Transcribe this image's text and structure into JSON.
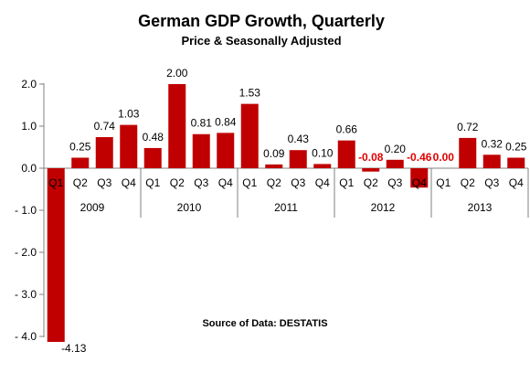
{
  "chart_data": {
    "type": "bar",
    "title": "German GDP Growth, Quarterly",
    "subtitle": "Price & Seasonally Adjusted",
    "source": "Source of Data: DESTATIS",
    "ylim": [
      -4.0,
      2.0
    ],
    "yticks": [
      "2.0",
      "1.0",
      "0.0",
      "- 1.0",
      "- 2.0",
      "- 3.0",
      "- 4.0"
    ],
    "ytick_values": [
      2,
      1,
      0,
      -1,
      -2,
      -3,
      -4
    ],
    "grid": false,
    "bar_color": "#c00000",
    "highlight_label_color": "#e00000",
    "categories": [
      "Q1",
      "Q2",
      "Q3",
      "Q4",
      "Q1",
      "Q2",
      "Q3",
      "Q4",
      "Q1",
      "Q2",
      "Q3",
      "Q4",
      "Q1",
      "Q2",
      "Q3",
      "Q4",
      "Q1",
      "Q2",
      "Q3",
      "Q4"
    ],
    "years": [
      "2009",
      "2010",
      "2011",
      "2012",
      "2013"
    ],
    "values": [
      -4.13,
      0.25,
      0.74,
      1.03,
      0.48,
      2.0,
      0.81,
      0.84,
      1.53,
      0.09,
      0.43,
      0.1,
      0.66,
      -0.08,
      0.2,
      -0.46,
      0.0,
      0.72,
      0.32,
      0.25
    ],
    "labels": [
      "-4.13",
      "0.25",
      "0.74",
      "1.03",
      "0.48",
      "2.00",
      "0.81",
      "0.84",
      "1.53",
      "0.09",
      "0.43",
      "0.10",
      "0.66",
      "-0.08",
      "0.20",
      "-0.46",
      "0.00",
      "0.72",
      "0.32",
      "0.25"
    ],
    "highlighted_labels": [
      13,
      15,
      16
    ]
  }
}
